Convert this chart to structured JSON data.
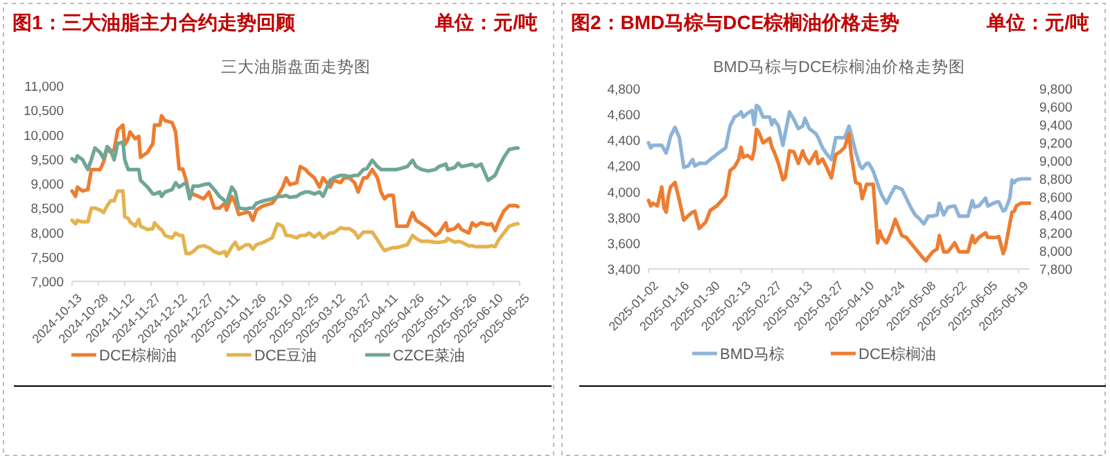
{
  "chart_data": [
    {
      "type": "line",
      "title": "图1：三大油脂主力合约走势回顾",
      "subtitle": "三大油脂盘面走势图",
      "annotations": [
        "单位：元/吨"
      ],
      "legend": "bottom",
      "x": [
        "2024-10-13",
        "2024-10-15",
        "2024-10-16",
        "2024-10-19",
        "2024-10-22",
        "2024-10-24",
        "2024-10-26",
        "2024-10-29",
        "2024-10-31",
        "2024-11-02",
        "2024-11-04",
        "2024-11-06",
        "2024-11-08",
        "2024-11-11",
        "2024-11-12",
        "2024-11-14",
        "2024-11-15",
        "2024-11-18",
        "2024-11-20",
        "2024-11-21",
        "2024-11-25",
        "2024-11-28",
        "2024-11-29",
        "2024-12-02",
        "2024-12-03",
        "2024-12-05",
        "2024-12-09",
        "2024-12-11",
        "2024-12-13",
        "2024-12-15",
        "2024-12-17",
        "2024-12-19",
        "2024-12-21",
        "2024-12-24",
        "2024-12-27",
        "2024-12-30",
        "2025-01-02",
        "2025-01-05",
        "2025-01-08",
        "2025-01-09",
        "2025-01-12",
        "2025-01-14",
        "2025-01-16",
        "2025-01-20",
        "2025-01-22",
        "2025-01-24",
        "2025-01-26",
        "2025-01-30",
        "2025-02-04",
        "2025-02-07",
        "2025-02-10",
        "2025-02-12",
        "2025-02-14",
        "2025-02-18",
        "2025-02-20",
        "2025-02-23",
        "2025-02-25",
        "2025-02-28",
        "2025-03-03",
        "2025-03-05",
        "2025-03-09",
        "2025-03-11",
        "2025-03-15",
        "2025-03-17",
        "2025-03-20",
        "2025-03-23",
        "2025-03-25",
        "2025-03-28",
        "2025-03-30",
        "2025-04-02",
        "2025-04-05",
        "2025-04-07",
        "2025-04-09",
        "2025-04-11",
        "2025-04-14",
        "2025-04-16",
        "2025-04-18",
        "2025-04-22",
        "2025-04-25",
        "2025-04-27",
        "2025-04-30",
        "2025-05-04",
        "2025-05-08",
        "2025-05-10",
        "2025-05-14",
        "2025-05-15",
        "2025-05-19",
        "2025-05-21",
        "2025-05-23",
        "2025-05-27",
        "2025-05-29",
        "2025-05-31",
        "2025-06-03",
        "2025-06-07",
        "2025-06-09",
        "2025-06-11",
        "2025-06-13",
        "2025-06-16",
        "2025-06-19",
        "2025-06-23",
        "2025-06-24"
      ],
      "xlim": [
        "2024-10-13",
        "2025-06-25"
      ],
      "xticks": [
        "2024-10-13",
        "2024-10-28",
        "2024-11-12",
        "2024-11-27",
        "2024-12-12",
        "2024-12-27",
        "2025-01-11",
        "2025-01-26",
        "2025-02-10",
        "2025-02-25",
        "2025-03-12",
        "2025-03-27",
        "2025-04-11",
        "2025-04-26",
        "2025-05-11",
        "2025-05-26",
        "2025-06-10",
        "2025-06-25"
      ],
      "ylim": [
        7000,
        11000
      ],
      "yticks": [
        {
          "value": 7000,
          "label": "7,000"
        },
        {
          "value": 7500,
          "label": "7,500"
        },
        {
          "value": 8000,
          "label": "8,000"
        },
        {
          "value": 8500,
          "label": "8,500"
        },
        {
          "value": 9000,
          "label": "9,000"
        },
        {
          "value": 9500,
          "label": "9,500"
        },
        {
          "value": 10000,
          "label": "10,000"
        },
        {
          "value": 10500,
          "label": "10,500"
        },
        {
          "value": 11000,
          "label": "11,000"
        }
      ],
      "series": [
        {
          "name": "DCE棕榈油",
          "color": "#ed7d31",
          "values": [
            8850,
            8740,
            8930,
            8850,
            8880,
            9290,
            9290,
            9290,
            9450,
            9730,
            9640,
            9700,
            10100,
            10200,
            9800,
            9920,
            10060,
            9920,
            9970,
            9540,
            9640,
            9820,
            10200,
            10200,
            10390,
            10290,
            10250,
            10060,
            9300,
            9300,
            9070,
            8740,
            8790,
            8740,
            8690,
            8830,
            8500,
            8500,
            8600,
            8460,
            8740,
            8600,
            8370,
            8410,
            8410,
            8250,
            8460,
            8550,
            8600,
            8740,
            8930,
            9120,
            8980,
            9020,
            9350,
            9290,
            9210,
            9120,
            8930,
            9120,
            8930,
            9070,
            9020,
            9120,
            9120,
            9020,
            8830,
            9120,
            9120,
            9290,
            9120,
            8830,
            8690,
            8760,
            8760,
            8130,
            8130,
            8130,
            8410,
            8250,
            8180,
            8080,
            7940,
            7990,
            8200,
            8040,
            8080,
            8160,
            8060,
            7990,
            8200,
            8130,
            8200,
            8160,
            8180,
            8040,
            8220,
            8440,
            8550,
            8550,
            8530
          ]
        },
        {
          "name": "DCE豆油",
          "color": "#e4b34f",
          "values": [
            8250,
            8180,
            8250,
            8220,
            8220,
            8500,
            8500,
            8460,
            8410,
            8550,
            8650,
            8650,
            8850,
            8850,
            8320,
            8290,
            8220,
            8130,
            8270,
            8130,
            8060,
            8080,
            8200,
            8080,
            8060,
            7940,
            7890,
            7990,
            7940,
            7940,
            7570,
            7570,
            7610,
            7710,
            7730,
            7690,
            7610,
            7570,
            7610,
            7520,
            7710,
            7800,
            7660,
            7750,
            7750,
            7660,
            7750,
            7800,
            7890,
            8180,
            8130,
            7940,
            7940,
            7890,
            7940,
            7940,
            7990,
            7910,
            7990,
            7890,
            7990,
            7990,
            8100,
            8080,
            8080,
            8010,
            7890,
            8010,
            8010,
            8010,
            7850,
            7730,
            7630,
            7660,
            7690,
            7690,
            7710,
            7750,
            7940,
            7880,
            7820,
            7820,
            7800,
            7800,
            7820,
            7880,
            7800,
            7820,
            7800,
            7730,
            7730,
            7710,
            7710,
            7710,
            7730,
            7710,
            7850,
            7990,
            8130,
            8180,
            8180
          ]
        },
        {
          "name": "CZCE菜油",
          "color": "#6fa697",
          "values": [
            9510,
            9450,
            9570,
            9490,
            9290,
            9490,
            9730,
            9640,
            9510,
            9760,
            9680,
            9490,
            9820,
            9850,
            9490,
            9290,
            9290,
            9290,
            9290,
            9070,
            8930,
            8790,
            8790,
            8830,
            8740,
            8830,
            8880,
            9020,
            8930,
            8980,
            9020,
            8690,
            8950,
            8950,
            8980,
            9000,
            8880,
            8740,
            8650,
            8600,
            8930,
            8830,
            8500,
            8480,
            8500,
            8500,
            8600,
            8650,
            8690,
            8740,
            8740,
            8760,
            8720,
            8740,
            8790,
            8830,
            8830,
            8790,
            8830,
            8740,
            9070,
            9120,
            9170,
            9170,
            9140,
            9170,
            9170,
            9290,
            9310,
            9480,
            9350,
            9290,
            9290,
            9290,
            9290,
            9290,
            9310,
            9350,
            9480,
            9350,
            9290,
            9260,
            9290,
            9350,
            9400,
            9290,
            9330,
            9420,
            9350,
            9380,
            9400,
            9350,
            9400,
            9070,
            9120,
            9170,
            9330,
            9540,
            9700,
            9730,
            9730
          ]
        }
      ]
    },
    {
      "type": "line",
      "title": "图2：BMD马棕与DCE棕榈油价格走势",
      "subtitle": "BMD马棕与DCE棕榈油价格走势图",
      "annotations": [
        "单位：元/吨"
      ],
      "legend": "bottom",
      "x": [
        "2025-01-02",
        "2025-01-03",
        "2025-01-04",
        "2025-01-06",
        "2025-01-08",
        "2025-01-09",
        "2025-01-10",
        "2025-01-11",
        "2025-01-12",
        "2025-01-14",
        "2025-01-16",
        "2025-01-18",
        "2025-01-20",
        "2025-01-22",
        "2025-01-23",
        "2025-01-25",
        "2025-01-28",
        "2025-01-30",
        "2025-02-02",
        "2025-02-06",
        "2025-02-08",
        "2025-02-10",
        "2025-02-12",
        "2025-02-13",
        "2025-02-14",
        "2025-02-16",
        "2025-02-18",
        "2025-02-19",
        "2025-02-20",
        "2025-02-21",
        "2025-02-23",
        "2025-02-26",
        "2025-02-27",
        "2025-02-28",
        "2025-03-02",
        "2025-03-04",
        "2025-03-05",
        "2025-03-07",
        "2025-03-09",
        "2025-03-11",
        "2025-03-13",
        "2025-03-14",
        "2025-03-16",
        "2025-03-19",
        "2025-03-20",
        "2025-03-22",
        "2025-03-24",
        "2025-03-26",
        "2025-03-28",
        "2025-03-30",
        "2025-04-01",
        "2025-04-03",
        "2025-04-04",
        "2025-04-06",
        "2025-04-08",
        "2025-04-09",
        "2025-04-11",
        "2025-04-12",
        "2025-04-14",
        "2025-04-16",
        "2025-04-17",
        "2025-04-18",
        "2025-04-20",
        "2025-04-22",
        "2025-04-24",
        "2025-04-27",
        "2025-04-29",
        "2025-05-01",
        "2025-05-03",
        "2025-05-05",
        "2025-05-07",
        "2025-05-08",
        "2025-05-09",
        "2025-05-11",
        "2025-05-13",
        "2025-05-14",
        "2025-05-16",
        "2025-05-18",
        "2025-05-21",
        "2025-05-23",
        "2025-05-25",
        "2025-05-27",
        "2025-05-29",
        "2025-05-30",
        "2025-06-01",
        "2025-06-04",
        "2025-06-05",
        "2025-06-09",
        "2025-06-10",
        "2025-06-12",
        "2025-06-13",
        "2025-06-15",
        "2025-06-16",
        "2025-06-17",
        "2025-06-18",
        "2025-06-20",
        "2025-06-24"
      ],
      "xlim": [
        "2025-01-02",
        "2025-06-24"
      ],
      "xticks": [
        "2025-01-02",
        "2025-01-16",
        "2025-01-30",
        "2025-02-13",
        "2025-02-27",
        "2025-03-13",
        "2025-03-27",
        "2025-04-10",
        "2025-04-24",
        "2025-05-08",
        "2025-05-22",
        "2025-06-05",
        "2025-06-19"
      ],
      "ylim": [
        3400,
        4800
      ],
      "yticks": [
        {
          "value": 3400,
          "label": "3,400"
        },
        {
          "value": 3600,
          "label": "3,600"
        },
        {
          "value": 3800,
          "label": "3,800"
        },
        {
          "value": 4000,
          "label": "4,000"
        },
        {
          "value": 4200,
          "label": "4,200"
        },
        {
          "value": 4400,
          "label": "4,400"
        },
        {
          "value": 4600,
          "label": "4,600"
        },
        {
          "value": 4800,
          "label": "4,800"
        }
      ],
      "y2lim": [
        7800,
        9800
      ],
      "y2ticks": [
        {
          "value": 7800,
          "label": "7,800"
        },
        {
          "value": 8000,
          "label": "8,000"
        },
        {
          "value": 8200,
          "label": "8,200"
        },
        {
          "value": 8400,
          "label": "8,400"
        },
        {
          "value": 8600,
          "label": "8,600"
        },
        {
          "value": 8800,
          "label": "8,800"
        },
        {
          "value": 9000,
          "label": "9,000"
        },
        {
          "value": 9200,
          "label": "9,200"
        },
        {
          "value": 9400,
          "label": "9,400"
        },
        {
          "value": 9600,
          "label": "9,600"
        },
        {
          "value": 9800,
          "label": "9,800"
        }
      ],
      "series": [
        {
          "name": "BMD马棕",
          "color": "#8db3d8",
          "values": [
            4380,
            4340,
            4360,
            4360,
            4360,
            4330,
            4300,
            4360,
            4430,
            4500,
            4420,
            4190,
            4200,
            4250,
            4200,
            4220,
            4220,
            4250,
            4290,
            4340,
            4510,
            4580,
            4600,
            4620,
            4580,
            4610,
            4630,
            4520,
            4670,
            4660,
            4580,
            4580,
            4520,
            4560,
            4510,
            4360,
            4450,
            4620,
            4560,
            4490,
            4510,
            4570,
            4490,
            4450,
            4420,
            4340,
            4290,
            4250,
            4420,
            4420,
            4420,
            4510,
            4450,
            4310,
            4200,
            4180,
            4220,
            4220,
            4160,
            4060,
            4010,
            3970,
            3910,
            3980,
            4040,
            4020,
            3950,
            3880,
            3820,
            3790,
            3750,
            3780,
            3810,
            3810,
            3820,
            3910,
            3820,
            3880,
            3890,
            3810,
            3810,
            3810,
            3930,
            3880,
            3890,
            3950,
            3890,
            3920,
            3920,
            3850,
            3860,
            3950,
            4090,
            4070,
            4090,
            4100,
            4100
          ]
        },
        {
          "name": "DCE棕榈油",
          "color": "#ed7d31",
          "axis": "y2",
          "values": [
            8560,
            8500,
            8530,
            8500,
            8710,
            8480,
            8430,
            8610,
            8710,
            8760,
            8560,
            8340,
            8390,
            8430,
            8440,
            8250,
            8320,
            8450,
            8500,
            8610,
            8890,
            8930,
            9020,
            9150,
            9040,
            9060,
            9020,
            9120,
            9350,
            9320,
            9200,
            9250,
            9150,
            9100,
            8970,
            8790,
            8810,
            9110,
            9100,
            8970,
            9110,
            9040,
            8970,
            9100,
            8970,
            9020,
            8920,
            8810,
            9070,
            9100,
            9150,
            9300,
            9070,
            8760,
            8740,
            8580,
            8740,
            8740,
            8740,
            8090,
            8220,
            8150,
            8090,
            8200,
            8350,
            8170,
            8150,
            8090,
            8030,
            7970,
            7910,
            7890,
            7930,
            7990,
            8020,
            8170,
            7990,
            7990,
            8090,
            7990,
            7990,
            7990,
            8170,
            8090,
            8150,
            8200,
            8150,
            8150,
            8160,
            7970,
            8040,
            8300,
            8430,
            8440,
            8500,
            8530,
            8530
          ]
        }
      ]
    }
  ]
}
